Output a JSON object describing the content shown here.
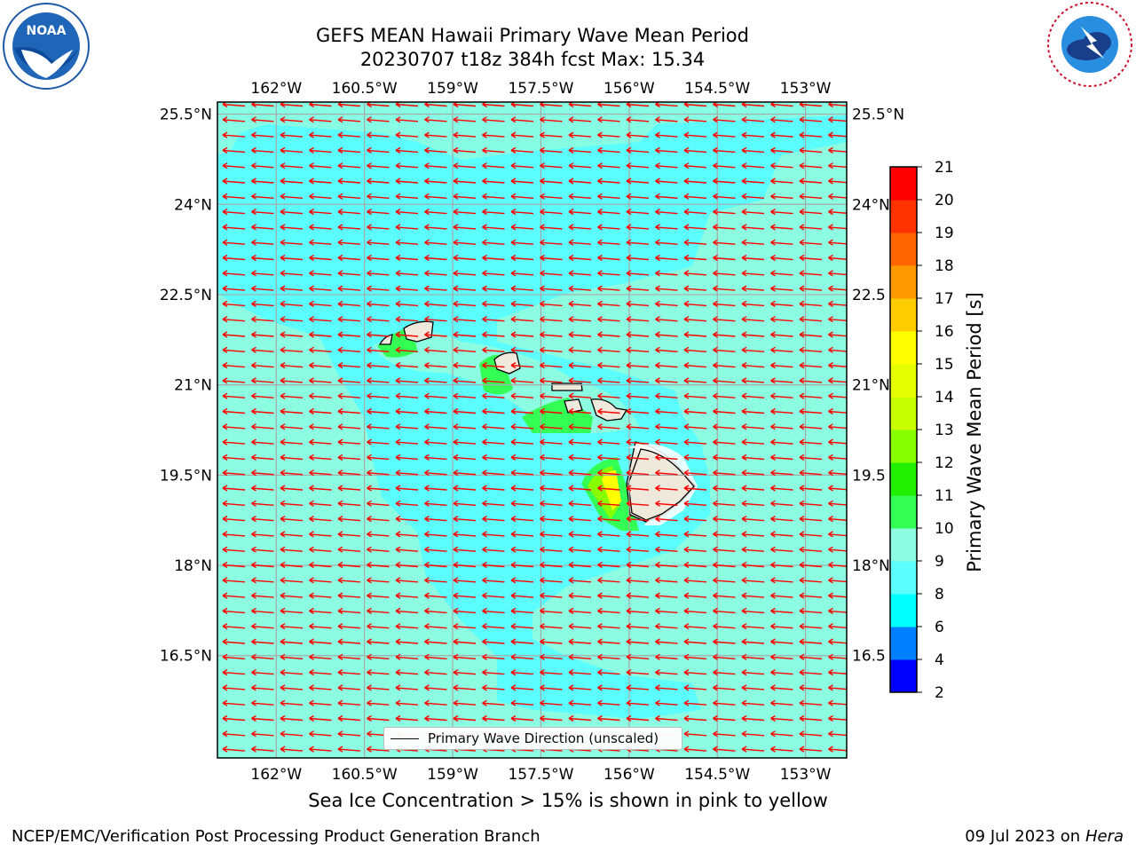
{
  "header": {
    "title_line1": "GEFS MEAN Hawaii Primary Wave Mean Period",
    "title_line2": "20230707 t18z 384h fcst   Max: 15.34"
  },
  "logos": {
    "left": {
      "icon": "noaa-logo-icon",
      "text": "NOAA",
      "ring_text": "NATIONAL OCEANIC AND ATMOSPHERIC ADMINISTRATION · U.S. DEPARTMENT OF COMMERCE"
    },
    "right": {
      "icon": "nws-logo-icon",
      "ring_text": "NATIONAL WEATHER SERVICE"
    }
  },
  "map": {
    "lon_ticks": [
      "162°W",
      "160.5°W",
      "159°W",
      "157.5°W",
      "156°W",
      "154.5°W",
      "153°W"
    ],
    "lat_ticks": [
      "25.5°N",
      "24°N",
      "22.5°N",
      "21°N",
      "19.5°N",
      "18°N",
      "16.5°N"
    ],
    "lat_ticks_right": [
      "25.5°N",
      "24°N",
      "22.5",
      "21°N",
      "19.5",
      "18°N",
      "16.5"
    ],
    "lon_range": [
      -163,
      -152.3
    ],
    "lat_range": [
      14.8,
      25.7
    ],
    "background_color": "#8cfde0",
    "arrow_color": "#ff0000",
    "arrow_direction": "westward",
    "legend_label": "Primary Wave Direction (unscaled)"
  },
  "colorbar": {
    "title": "Primary Wave Mean Period [s]",
    "levels": [
      "2",
      "4",
      "6",
      "8",
      "9",
      "10",
      "11",
      "12",
      "13",
      "14",
      "15",
      "16",
      "17",
      "18",
      "19",
      "20",
      "21"
    ],
    "colors": [
      "#0000ff",
      "#0080ff",
      "#00ffff",
      "#5cfdfd",
      "#8cfde0",
      "#33ff55",
      "#22ee00",
      "#88ff00",
      "#c8ff00",
      "#e6ff00",
      "#ffff00",
      "#ffcc00",
      "#ff9900",
      "#ff6600",
      "#ff3300",
      "#ff0000"
    ]
  },
  "caption": "Sea Ice Concentration > 15% is shown in pink to yellow",
  "footer": {
    "left": "NCEP/EMC/Verification Post Processing Product Generation Branch",
    "right_date": "09 Jul 2023 on ",
    "right_host": "Hera"
  }
}
